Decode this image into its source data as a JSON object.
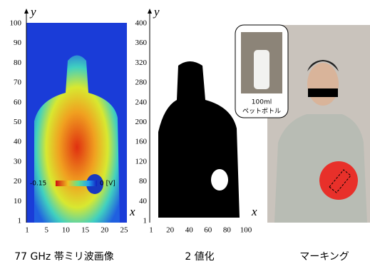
{
  "panels": [
    {
      "caption": "77 GHz 帯ミリ波画像",
      "y_axis": {
        "label": "y",
        "ticks": [
          100,
          90,
          80,
          70,
          60,
          50,
          40,
          30,
          20,
          10,
          1
        ]
      },
      "x_axis": {
        "label": "x",
        "ticks": [
          1,
          5,
          10,
          15,
          20,
          25
        ]
      },
      "colorbar": {
        "min_label": "-0.15",
        "max_label": "0 [V]"
      }
    },
    {
      "caption": "2 値化",
      "y_axis": {
        "label": "y",
        "ticks": [
          400,
          360,
          320,
          280,
          240,
          200,
          160,
          120,
          80,
          40,
          1
        ]
      },
      "x_axis": {
        "label": "x",
        "ticks": [
          1,
          20,
          40,
          60,
          80,
          100
        ]
      }
    },
    {
      "caption": "マーキング",
      "callout": [
        "100ml",
        "ペットボトル"
      ]
    }
  ]
}
